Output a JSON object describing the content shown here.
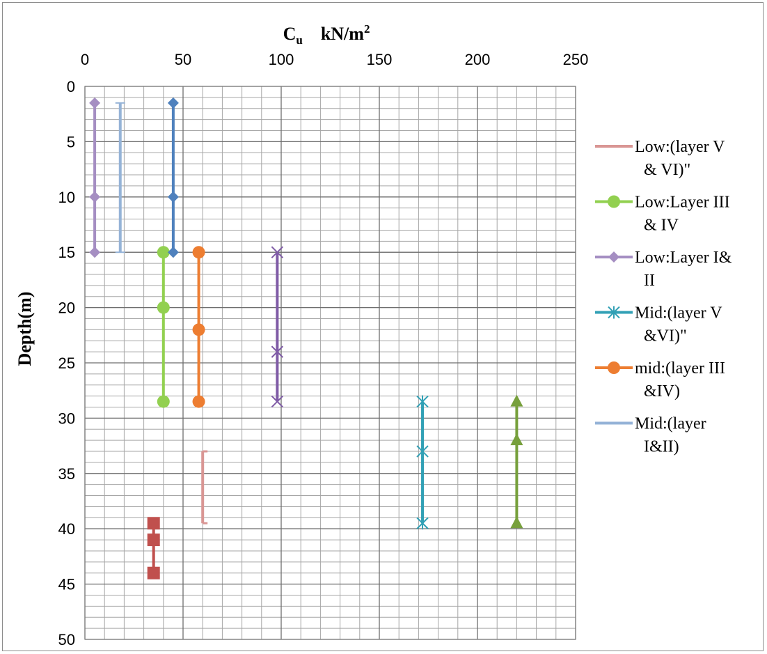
{
  "chart_data": {
    "type": "line",
    "title_main": "C",
    "title_sub": "u",
    "title_unit": "kN/m",
    "title_sup": "2",
    "ylabel": "Depth(m)",
    "x_axis_position": "top",
    "y_axis_inverted": true,
    "xlim": [
      0,
      250
    ],
    "ylim": [
      0,
      50
    ],
    "x_ticks": [
      "0",
      "50",
      "100",
      "150",
      "200",
      "250"
    ],
    "y_ticks": [
      "0",
      "5",
      "10",
      "15",
      "20",
      "25",
      "30",
      "35",
      "40",
      "45",
      "50"
    ],
    "x_tick_values": [
      0,
      50,
      100,
      150,
      200,
      250
    ],
    "y_tick_values": [
      0,
      5,
      10,
      15,
      20,
      25,
      30,
      35,
      40,
      45,
      50
    ],
    "minor_grid_x_step": 10,
    "minor_grid_y_step": 1,
    "grid": true,
    "legend_position": "right",
    "series": [
      {
        "name": "Low:(layer V\n& VI)\"",
        "legend": true,
        "color": "#d99694",
        "marker": "dash",
        "points": [
          [
            60,
            33
          ],
          [
            60,
            39.5
          ]
        ]
      },
      {
        "name": "Low:Layer III\n& IV",
        "legend": true,
        "color": "#92d050",
        "marker": "circle",
        "points": [
          [
            40,
            15
          ],
          [
            40,
            20
          ],
          [
            40,
            28.5
          ]
        ]
      },
      {
        "name": "Low:Layer I&\nII",
        "legend": true,
        "color": "#a58ec2",
        "marker": "diamond",
        "points": [
          [
            5,
            1.5
          ],
          [
            5,
            10
          ],
          [
            5,
            15
          ]
        ]
      },
      {
        "name": "Mid:(layer V\n&VI)\"",
        "legend": true,
        "color": "#31a0b5",
        "marker": "star",
        "points": [
          [
            172,
            28.5
          ],
          [
            172,
            33
          ],
          [
            172,
            39.5
          ]
        ]
      },
      {
        "name": "mid:(layer III\n&IV)",
        "legend": true,
        "color": "#ed7d31",
        "marker": "circle",
        "points": [
          [
            58,
            15
          ],
          [
            58,
            22
          ],
          [
            58,
            28.5
          ]
        ]
      },
      {
        "name": "Mid:(layer\nI&II)",
        "legend": true,
        "color": "#95b3d7",
        "marker": "plus",
        "points": [
          [
            18,
            1.5
          ],
          [
            18,
            15
          ]
        ]
      },
      {
        "color": "#4f81bd",
        "legend": false,
        "marker": "diamond",
        "points": [
          [
            45,
            1.5
          ],
          [
            45,
            10
          ],
          [
            45,
            15
          ]
        ]
      },
      {
        "color": "#7f5ba6",
        "legend": false,
        "marker": "x",
        "points": [
          [
            98,
            15
          ],
          [
            98,
            24
          ],
          [
            98,
            28.5
          ]
        ]
      },
      {
        "color": "#c0504d",
        "legend": false,
        "marker": "square",
        "points": [
          [
            35,
            39.5
          ],
          [
            35,
            41
          ],
          [
            35,
            44
          ]
        ]
      },
      {
        "color": "#77a03c",
        "legend": false,
        "marker": "triangle",
        "points": [
          [
            220,
            28.5
          ],
          [
            220,
            32
          ],
          [
            220,
            39.5
          ]
        ]
      }
    ]
  }
}
